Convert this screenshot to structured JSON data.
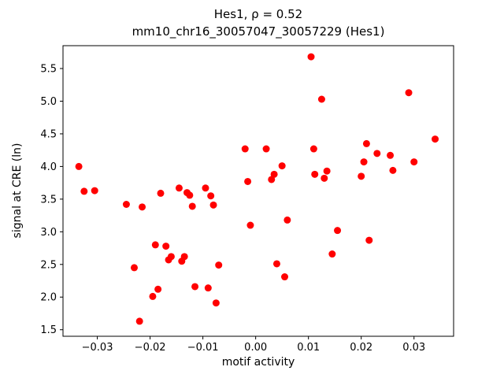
{
  "figure": {
    "title_line1": "Hes1, ρ = 0.52",
    "title_line2": "mm10_chr16_30057047_30057229 (Hes1)",
    "xlabel": "motif activity",
    "ylabel": "signal at CRE (ln)"
  },
  "chart_data": {
    "type": "scatter",
    "title": "Hes1, ρ = 0.52",
    "subtitle": "mm10_chr16_30057047_30057229 (Hes1)",
    "xlabel": "motif activity",
    "ylabel": "signal at CRE (ln)",
    "marker_color": "#ff0000",
    "marker_radius_px": 4.5,
    "grid": false,
    "legend": "none",
    "xlim": [
      -0.0365,
      0.0375
    ],
    "ylim": [
      1.4,
      5.85
    ],
    "xticks": [
      -0.03,
      -0.02,
      -0.01,
      0.0,
      0.01,
      0.02,
      0.03
    ],
    "yticks": [
      1.5,
      2.0,
      2.5,
      3.0,
      3.5,
      4.0,
      4.5,
      5.0,
      5.5
    ],
    "points": [
      [
        -0.0335,
        4.0
      ],
      [
        -0.0325,
        3.62
      ],
      [
        -0.0305,
        3.63
      ],
      [
        -0.0245,
        3.42
      ],
      [
        -0.023,
        2.45
      ],
      [
        -0.022,
        1.63
      ],
      [
        -0.0215,
        3.38
      ],
      [
        -0.0195,
        2.01
      ],
      [
        -0.019,
        2.8
      ],
      [
        -0.0185,
        2.12
      ],
      [
        -0.018,
        3.59
      ],
      [
        -0.017,
        2.78
      ],
      [
        -0.0165,
        2.57
      ],
      [
        -0.016,
        2.62
      ],
      [
        -0.0145,
        3.67
      ],
      [
        -0.014,
        2.55
      ],
      [
        -0.0135,
        2.62
      ],
      [
        -0.013,
        3.6
      ],
      [
        -0.0125,
        3.56
      ],
      [
        -0.012,
        3.39
      ],
      [
        -0.0115,
        2.16
      ],
      [
        -0.0095,
        3.67
      ],
      [
        -0.009,
        2.14
      ],
      [
        -0.0085,
        3.55
      ],
      [
        -0.008,
        3.41
      ],
      [
        -0.0075,
        1.91
      ],
      [
        -0.007,
        2.49
      ],
      [
        -0.002,
        4.27
      ],
      [
        -0.0015,
        3.77
      ],
      [
        -0.001,
        3.1
      ],
      [
        0.002,
        4.27
      ],
      [
        0.003,
        3.8
      ],
      [
        0.0035,
        3.88
      ],
      [
        0.004,
        2.51
      ],
      [
        0.005,
        4.01
      ],
      [
        0.0055,
        2.31
      ],
      [
        0.006,
        3.18
      ],
      [
        0.0105,
        5.68
      ],
      [
        0.011,
        4.27
      ],
      [
        0.0112,
        3.88
      ],
      [
        0.0125,
        5.03
      ],
      [
        0.013,
        3.82
      ],
      [
        0.0135,
        3.93
      ],
      [
        0.0145,
        2.66
      ],
      [
        0.0155,
        3.02
      ],
      [
        0.02,
        3.85
      ],
      [
        0.0205,
        4.07
      ],
      [
        0.021,
        4.35
      ],
      [
        0.0215,
        2.87
      ],
      [
        0.023,
        4.2
      ],
      [
        0.0255,
        4.17
      ],
      [
        0.026,
        3.94
      ],
      [
        0.029,
        5.13
      ],
      [
        0.03,
        4.07
      ],
      [
        0.034,
        4.42
      ]
    ]
  }
}
